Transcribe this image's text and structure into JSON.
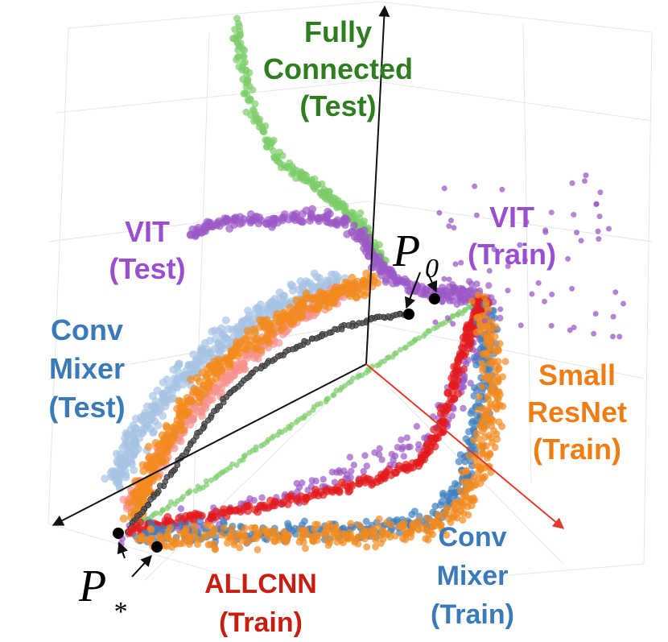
{
  "chart_data": {
    "type": "scatter",
    "projection": "3d",
    "axes": [
      "x",
      "y",
      "z"
    ],
    "grid": true,
    "colors": {
      "fully_connected": "#7ccd6a",
      "fully_connected_label": "#2e7d1e",
      "vit": "#9b59c6",
      "vit_label": "#9a4fd0",
      "conv_mixer": "#3f7fbf",
      "conv_mixer_label": "#3a7ab8",
      "conv_mixer_test": "#a7c3e4",
      "small_resnet": "#f28a1e",
      "small_resnet_label": "#f07d14",
      "allcnn": "#e31a1c",
      "allcnn_label": "#c81e12",
      "allcnn_test": "#f6928d",
      "geodesic": "#555555",
      "x_axis": "#e03a2a",
      "axis": "#111111"
    },
    "labels": {
      "fully_connected": [
        "Fully",
        "Connected",
        "(Test)"
      ],
      "vit_test": [
        "VIT",
        "(Test)"
      ],
      "vit_train": [
        "VIT",
        "(Train)"
      ],
      "conv_mixer_test": [
        "Conv",
        "Mixer",
        "(Test)"
      ],
      "small_resnet_train": [
        "Small",
        "ResNet",
        "(Train)"
      ],
      "allcnn_train": [
        "ALLCNN",
        "(Train)"
      ],
      "conv_mixer_train": [
        "Conv",
        "Mixer",
        "(Train)"
      ]
    },
    "endpoints": {
      "start": {
        "symbol": "P",
        "subscript": "0"
      },
      "end": {
        "symbol": "P",
        "subscript": "*"
      }
    },
    "series": [
      {
        "name": "Fully Connected (Test)",
        "split": "test",
        "color_key": "fully_connected"
      },
      {
        "name": "VIT (Test)",
        "split": "test",
        "color_key": "vit"
      },
      {
        "name": "VIT (Train)",
        "split": "train",
        "color_key": "vit"
      },
      {
        "name": "Conv Mixer (Test)",
        "split": "test",
        "color_key": "conv_mixer_test"
      },
      {
        "name": "ALLCNN (Test)",
        "split": "test",
        "color_key": "allcnn_test"
      },
      {
        "name": "Small ResNet (Test)",
        "split": "test",
        "color_key": "small_resnet"
      },
      {
        "name": "Geodesic",
        "split": "reference",
        "color_key": "geodesic"
      },
      {
        "name": "Fully Connected (Train)",
        "split": "train",
        "color_key": "fully_connected"
      },
      {
        "name": "ALLCNN (Train)",
        "split": "train",
        "color_key": "allcnn"
      },
      {
        "name": "Conv Mixer (Train)",
        "split": "train",
        "color_key": "conv_mixer"
      },
      {
        "name": "Small ResNet (Train)",
        "split": "train",
        "color_key": "small_resnet"
      }
    ]
  }
}
